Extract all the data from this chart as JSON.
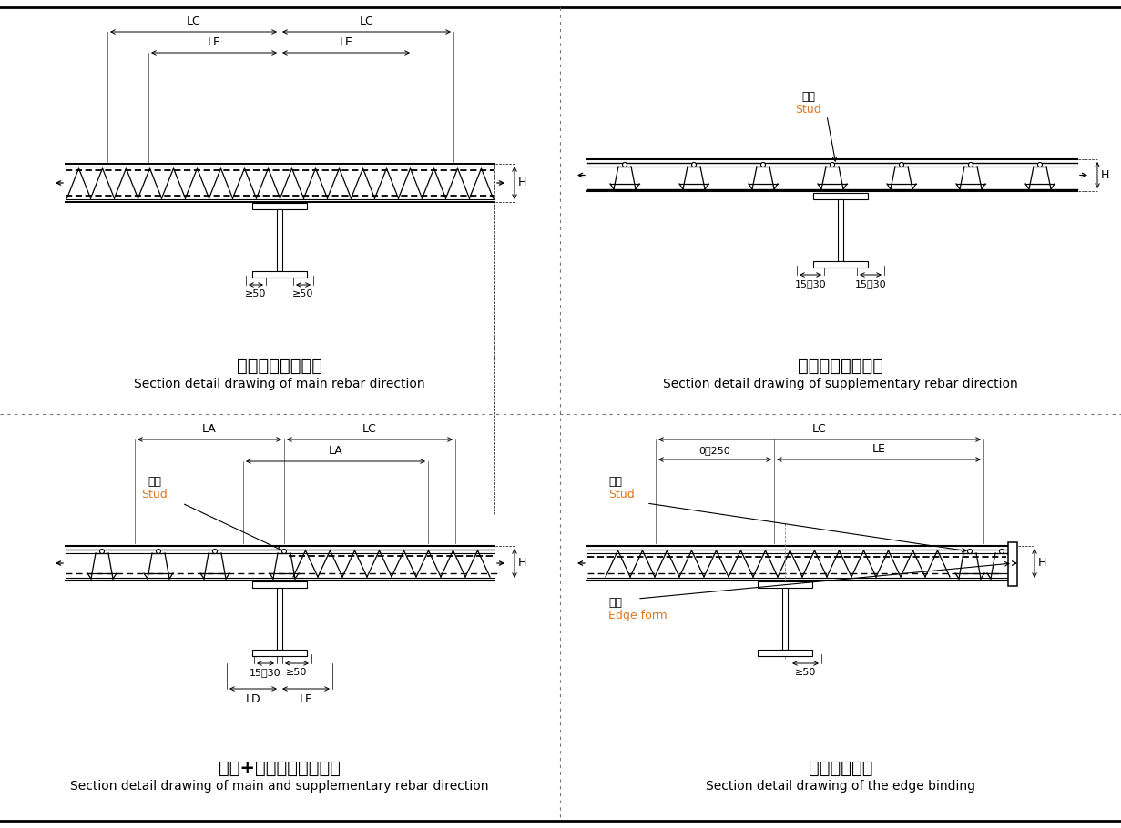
{
  "bg_color": "#ffffff",
  "line_color": "#000000",
  "orange_color": "#E07820",
  "blue_color": "#1050C0",
  "panels": [
    {
      "title_zh": "主趯方向截面详图",
      "title_en": "Section detail drawing of main rebar direction"
    },
    {
      "title_zh": "辅趯方向截面详图",
      "title_en": "Section detail drawing of supplementary rebar direction"
    },
    {
      "title_zh": "辅趯+主趯方向截面详图",
      "title_en": "Section detail drawing of main and supplementary rebar direction"
    },
    {
      "title_zh": "收边截面详图",
      "title_en": "Section detail drawing of the edge binding"
    }
  ],
  "labels": {
    "LC": "LC",
    "LE": "LE",
    "LA": "LA",
    "LD": "LD",
    "H": "H",
    "ge50": "≥50",
    "stud_zh": "栓钉",
    "stud_en": "Stud",
    "edge_zh": "边模",
    "edge_en": "Edge form",
    "dim_15_30": "15～30",
    "dim_0_250": "0～250"
  }
}
